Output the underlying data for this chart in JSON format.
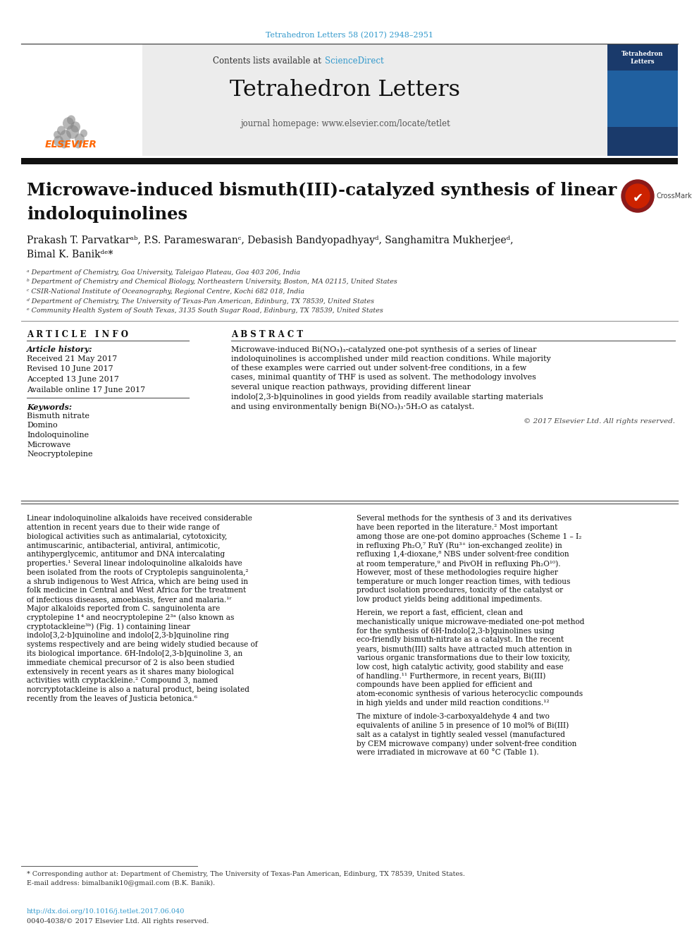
{
  "page_bg": "#ffffff",
  "top_citation": "Tetrahedron Letters 58 (2017) 2948–2951",
  "top_citation_color": "#3399cc",
  "journal_header_bg": "#e8e8e8",
  "journal_name": "Tetrahedron Letters",
  "journal_homepage": "journal homepage: www.elsevier.com/locate/tetlet",
  "contents_text": "Contents lists available at ",
  "sciencedirect_text": "ScienceDirect",
  "sciencedirect_color": "#3399cc",
  "black_bar_color": "#1a1a1a",
  "article_title_line1": "Microwave-induced bismuth(III)-catalyzed synthesis of linear",
  "article_title_line2": "indoloquinolines",
  "authors_line1": "Prakash T. Parvatkarᵃᵇ, P.S. Parameswaranᶜ, Debasish Bandyopadhyayᵈ, Sanghamitra Mukherjeeᵈ,",
  "authors_line2": "Bimal K. Banikᵈᵉ*",
  "affiliations": [
    "ᵃ Department of Chemistry, Goa University, Taleigao Plateau, Goa 403 206, India",
    "ᵇ Department of Chemistry and Chemical Biology, Northeastern University, Boston, MA 02115, United States",
    "ᶜ CSIR-National Institute of Oceanography, Regional Centre, Kochi 682 018, India",
    "ᵈ Department of Chemistry, The University of Texas-Pan American, Edinburg, TX 78539, United States",
    "ᵉ Community Health System of South Texas, 3135 South Sugar Road, Edinburg, TX 78539, United States"
  ],
  "article_info_title": "A R T I C L E   I N F O",
  "abstract_title": "A B S T R A C T",
  "article_history_label": "Article history:",
  "history_items": [
    "Received 21 May 2017",
    "Revised 10 June 2017",
    "Accepted 13 June 2017",
    "Available online 17 June 2017"
  ],
  "keywords_label": "Keywords:",
  "keywords": [
    "Bismuth nitrate",
    "Domino",
    "Indoloquinoline",
    "Microwave",
    "Neocryptolepine"
  ],
  "abstract_text": "Microwave-induced Bi(NO₃)₃-catalyzed one-pot synthesis of a series of linear indoloquinolines is accomplished under mild reaction conditions. While majority of these examples were carried out under solvent-free conditions, in a few cases, minimal quantity of THF is used as solvent. The methodology involves several unique reaction pathways, providing different linear indolo[2,3-b]quinolines in good yields from readily available starting materials and using environmentally benign Bi(NO₃)₃·5H₂O as catalyst.",
  "copyright_text": "© 2017 Elsevier Ltd. All rights reserved.",
  "body_col1_para1": "    Linear indoloquinoline alkaloids have received considerable attention in recent years due to their wide range of biological activities such as antimalarial, cytotoxicity, antimuscarinic, antibacterial, antiviral, antimicotic, antihyperglycemic, antitumor and DNA intercalating properties.¹ Several linear indoloquinoline alkaloids have been isolated from the roots of Cryptolepis sanguinolenta,² a shrub indigenous to West Africa, which are being used in folk medicine in Central and West Africa for the treatment of infectious diseases, amoebiasis, fever and malaria.¹ʳ Major alkaloids reported from C. sanguinolenta are cryptolepine 1⁴ and neocryptolepine 2³ᵃ (also known as cryptotackleine³ᵇ) (Fig. 1) containing linear indolo[3,2-b]quinoline and indolo[2,3-b]quinoline ring systems respectively and are being widely studied because of its biological importance. 6H-Indolo[2,3-b]quinoline 3, an immediate chemical precursor of 2 is also been studied extensively in recent years as it shares many biological activities with cryptackleine.² Compound 3, named norcryptotackleine is also a natural product, being isolated recently from the leaves of Justicia betonica.⁶",
  "body_col2_para1": "    Several methods for the synthesis of 3 and its derivatives have been reported in the literature.² Most important among those are one-pot domino approaches (Scheme 1 – I₂ in refluxing Ph₂O,⁷ RuY (Ru³⁺ ion-exchanged zeolite) in refluxing 1,4-dioxane,⁸ NBS under solvent-free condition at room temperature,⁹ and PivOH in refluxing Ph₂O¹⁰). However, most of these methodologies require higher temperature or much longer reaction times, with tedious product isolation procedures, toxicity of the catalyst or low product yields being additional impediments.",
  "body_col2_para2": "    Herein, we report a fast, efficient, clean and mechanistically unique microwave-mediated one-pot method for the synthesis of 6H-Indolo[2,3-b]quinolines using eco-friendly bismuth-nitrate as a catalyst. In the recent years, bismuth(III) salts have attracted much attention in various organic transformations due to their low toxicity, low cost, high catalytic activity, good stability and ease of handling.¹¹ Furthermore, in recent years, Bi(III) compounds have been applied for efficient and atom-economic synthesis of various heterocyclic compounds in high yields and under mild reaction conditions.¹²",
  "body_col2_para3": "    The mixture of indole-3-carboxyaldehyde 4 and two equivalents of aniline 5 in presence of 10 mol% of Bi(III) salt as a catalyst in tightly sealed vessel (manufactured by CEM microwave company) under solvent-free condition were irradiated in microwave at 60 °C (Table 1).",
  "footer_doi": "http://dx.doi.org/10.1016/j.tetlet.2017.06.040",
  "footer_issn": "0040-4038/© 2017 Elsevier Ltd. All rights reserved.",
  "footnote_line1": "* Corresponding author at: Department of Chemistry, The University of Texas-Pan American, Edinburg, TX 78539, United States.",
  "footnote_line2": "E-mail address: bimalbanik10@gmail.com (B.K. Banik).",
  "elsevier_color": "#ff6600",
  "cover_bg_top": "#1a3a6b",
  "cover_bg_mid": "#2266aa",
  "separator_color": "#888888"
}
